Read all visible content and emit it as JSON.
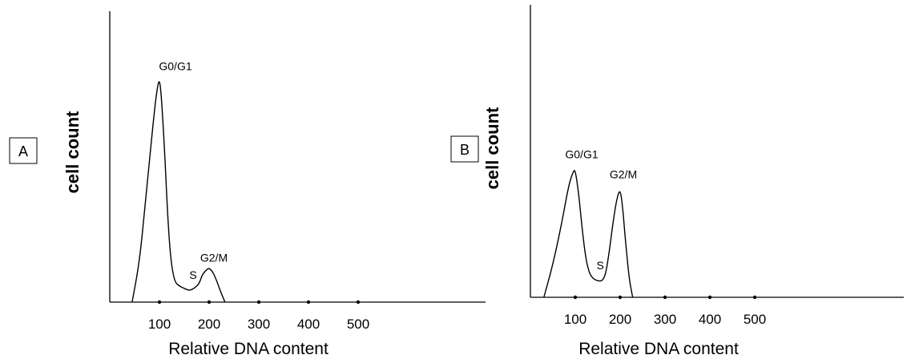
{
  "chart_data": [
    {
      "type": "line",
      "panel": "A",
      "xlabel": "Relative DNA content",
      "ylabel": "cell count",
      "xticks": [
        100,
        200,
        300,
        400,
        500
      ],
      "xlim": [
        0,
        700
      ],
      "ylim": [
        0,
        100
      ],
      "grid": false,
      "curve": {
        "x": [
          45,
          60,
          70,
          80,
          88,
          95,
          100,
          104,
          110,
          116,
          122,
          130,
          140,
          150,
          160,
          170,
          180,
          186,
          194,
          200,
          208,
          216,
          224,
          232
        ],
        "y": [
          0,
          18,
          40,
          62,
          80,
          93,
          98,
          90,
          68,
          40,
          20,
          9,
          7,
          6,
          5,
          6,
          8,
          12,
          14,
          15,
          13,
          9,
          4,
          0
        ]
      },
      "annotations": [
        {
          "text": "G0/G1",
          "x": 100,
          "y": 98
        },
        {
          "text": "S",
          "x": 155,
          "y": 6
        },
        {
          "text": "G2/M",
          "x": 200,
          "y": 15
        }
      ]
    },
    {
      "type": "line",
      "panel": "B",
      "xlabel": "Relative DNA content",
      "ylabel": "cell count",
      "xticks": [
        100,
        200,
        300,
        400,
        500
      ],
      "xlim": [
        0,
        700
      ],
      "ylim": [
        0,
        100
      ],
      "grid": false,
      "curve": {
        "x": [
          30,
          50,
          70,
          85,
          95,
          100,
          108,
          116,
          124,
          132,
          140,
          150,
          160,
          168,
          176,
          184,
          192,
          200,
          206,
          212,
          220,
          228
        ],
        "y": [
          0,
          14,
          32,
          48,
          54,
          55,
          44,
          28,
          16,
          10,
          8,
          7,
          7,
          10,
          20,
          32,
          42,
          47,
          38,
          24,
          8,
          0
        ]
      },
      "annotations": [
        {
          "text": "G0/G1",
          "x": 100,
          "y": 55
        },
        {
          "text": "S",
          "x": 145,
          "y": 8
        },
        {
          "text": "G2/M",
          "x": 200,
          "y": 47
        }
      ]
    }
  ]
}
